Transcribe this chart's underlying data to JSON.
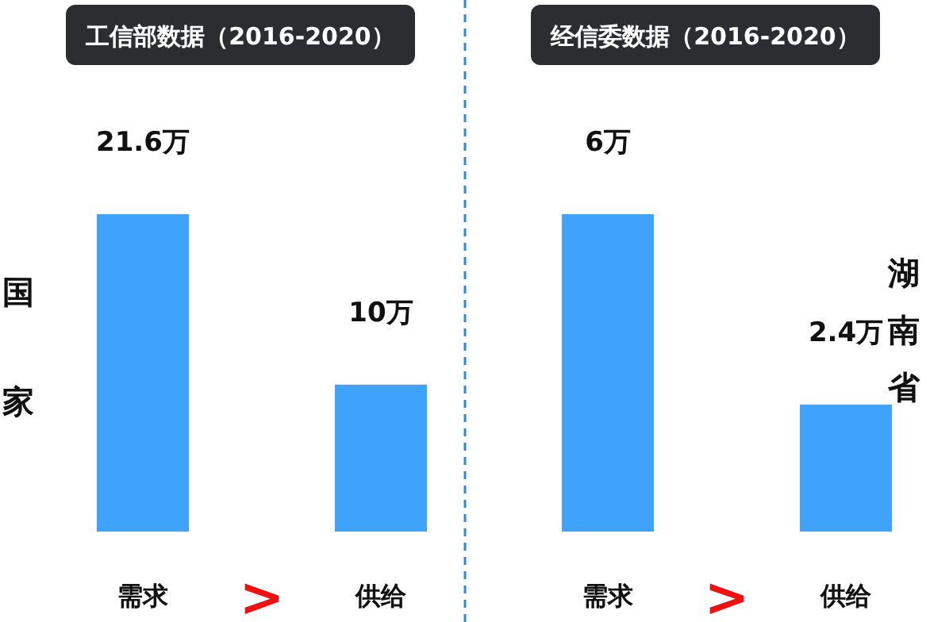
{
  "chart_data": [
    {
      "type": "bar",
      "title": "工信部数据（2016-2020）",
      "ylabel": "国家",
      "categories": [
        "需求",
        "供给"
      ],
      "values": [
        21.6,
        10
      ],
      "value_labels": [
        "21.6万",
        "10万"
      ],
      "color": "#3fa2fb",
      "annotations": [
        ">"
      ]
    },
    {
      "type": "bar",
      "title": "经信委数据（2016-2020）",
      "y2label": "湖南省",
      "categories": [
        "需求",
        "供给"
      ],
      "values": [
        6,
        2.4
      ],
      "value_labels": [
        "6万",
        "2.4万"
      ],
      "color": "#3fa2fb",
      "annotations": [
        ">"
      ]
    }
  ]
}
